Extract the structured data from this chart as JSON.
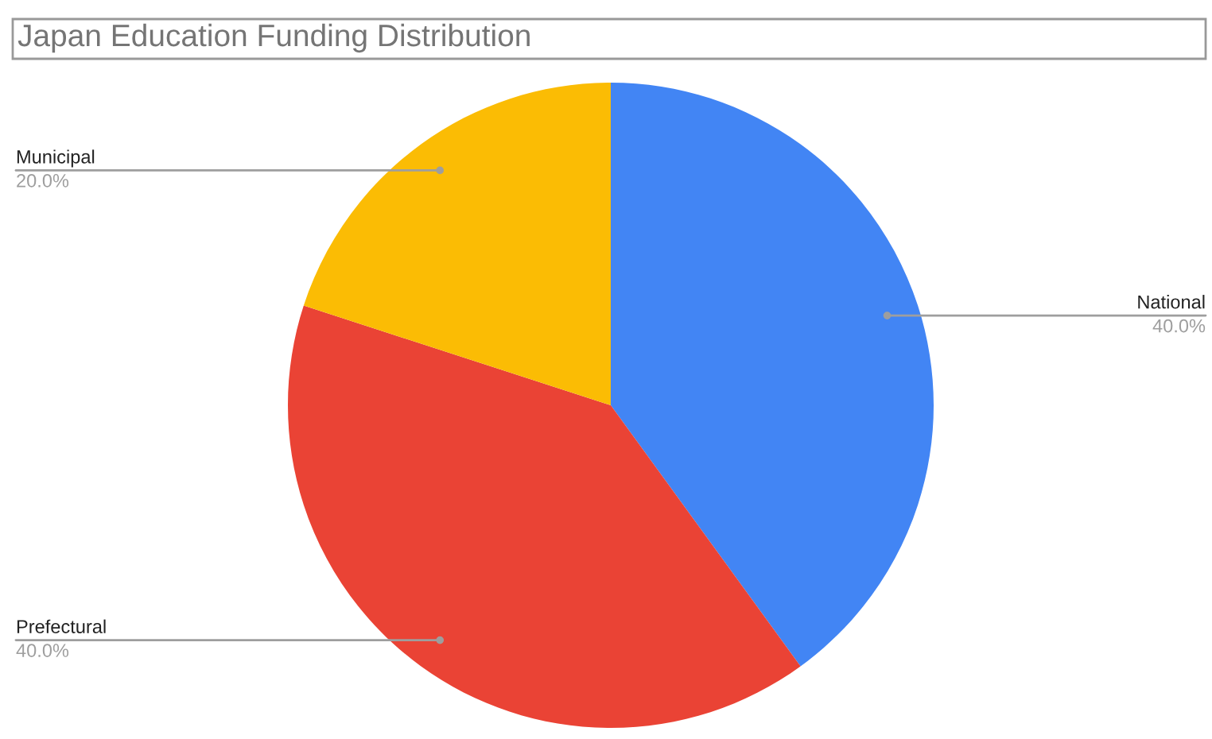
{
  "chart_data": {
    "type": "pie",
    "title": "Japan Education Funding Distribution",
    "categories": [
      "National",
      "Prefectural",
      "Municipal"
    ],
    "values": [
      40,
      40,
      20
    ],
    "value_labels": [
      "40.0%",
      "40.0%",
      "20.0%"
    ],
    "colors": [
      "#4285f4",
      "#ea4335",
      "#fbbc04"
    ]
  }
}
